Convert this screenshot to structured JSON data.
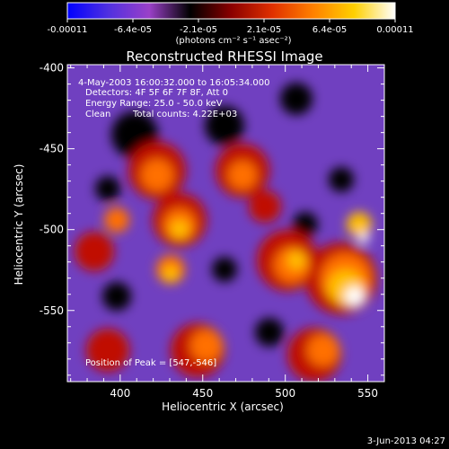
{
  "colorbar": {
    "tick_labels": [
      "-0.00011",
      "-6.4e-05",
      "-2.1e-05",
      "2.1e-05",
      "6.4e-05",
      "0.00011"
    ],
    "unit_label": "(photons cm⁻² s⁻¹ asec⁻²)",
    "colors": [
      "#0000ff",
      "#5030e0",
      "#9a40c8",
      "#000000",
      "#8a0000",
      "#e03000",
      "#ff8000",
      "#ffd000",
      "#ffffff"
    ]
  },
  "title": "Reconstructed RHESSI Image",
  "annotations": {
    "time_range": "4-May-2003 16:00:32.000 to 16:05:34.000",
    "detectors": "Detectors: 4F 5F 6F 7F 8F, Att 0",
    "energy_range": "Energy Range: 25.0 - 50.0 keV",
    "algorithm": "Clean",
    "total_counts": "Total counts: 4.22E+03",
    "peak_position": "Position of Peak = [547,-546]"
  },
  "axes": {
    "xlabel": "Heliocentric X (arcsec)",
    "ylabel": "Heliocentric Y (arcsec)",
    "xlim": [
      368,
      560
    ],
    "ylim": [
      -594,
      -398
    ],
    "x_ticks": [
      400,
      450,
      500,
      550
    ],
    "y_ticks": [
      -400,
      -450,
      -500,
      -550
    ]
  },
  "footer": {
    "date_stamp": "3-Jun-2013 04:27"
  },
  "image_palette": {
    "background": "#7040c0",
    "dark": "#000000",
    "red": "#c01000",
    "orange": "#ff7000",
    "yellow": "#ffc000",
    "white": "#ffffff"
  }
}
